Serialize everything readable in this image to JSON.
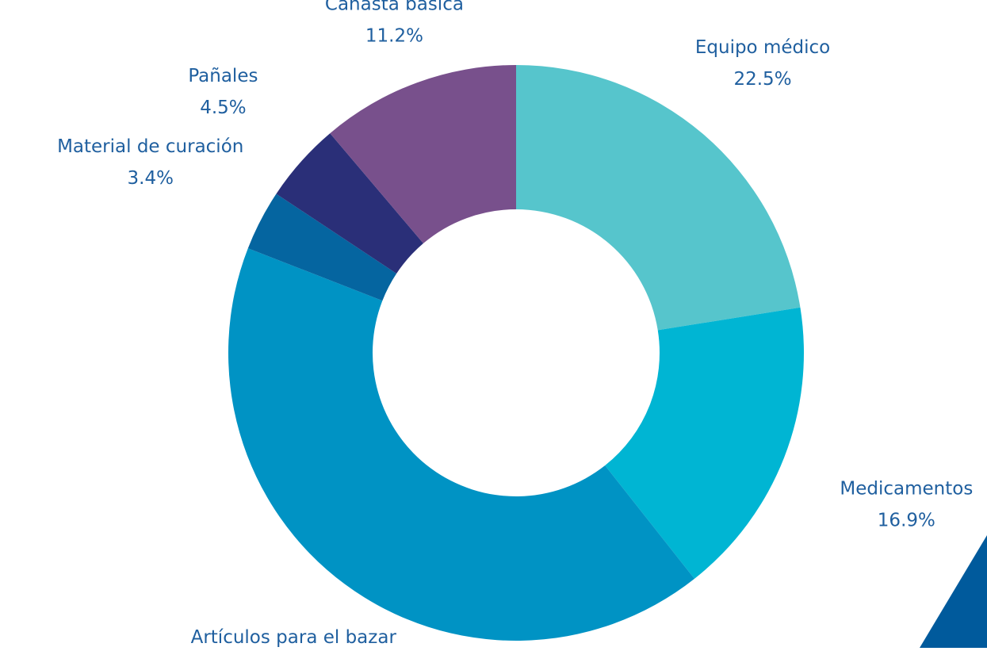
{
  "chart_data": {
    "type": "donut",
    "categories": [
      "Equipo médico",
      "Medicamentos",
      "Artículos para el bazar",
      "Material de curación",
      "Pañales",
      "Canasta básica"
    ],
    "values": [
      22.5,
      16.9,
      41.6,
      3.4,
      4.5,
      11.2
    ],
    "value_labels": [
      "22.5%",
      "16.9%",
      "41.6%",
      "3.4%",
      "4.5%",
      "11.2%"
    ],
    "colors": [
      "#56c5cc",
      "#00b5d3",
      "#0093c4",
      "#0565a0",
      "#2a2f78",
      "#78508c"
    ]
  }
}
